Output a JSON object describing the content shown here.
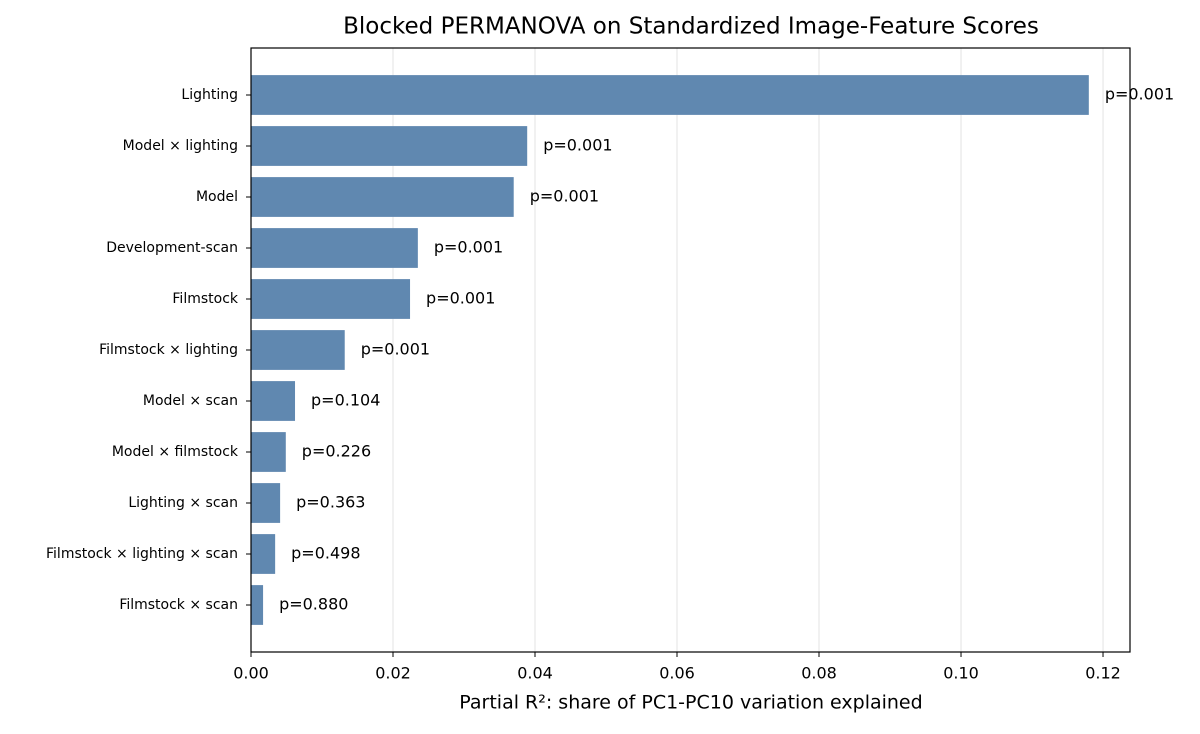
{
  "chart_data": {
    "type": "barh",
    "title": "Blocked PERMANOVA on Standardized Image-Feature Scores",
    "xlabel": "Partial R²: share of PC1-PC10 variation explained",
    "categories": [
      "Lighting",
      "Model × lighting",
      "Model",
      "Development-scan",
      "Filmstock",
      "Filmstock × lighting",
      "Model × scan",
      "Model × filmstock",
      "Lighting × scan",
      "Filmstock × lighting × scan",
      "Filmstock × scan"
    ],
    "values": [
      0.118,
      0.0389,
      0.037,
      0.0235,
      0.0224,
      0.0132,
      0.0062,
      0.0049,
      0.0041,
      0.0034,
      0.0017
    ],
    "annotations": [
      "p=0.001",
      "p=0.001",
      "p=0.001",
      "p=0.001",
      "p=0.001",
      "p=0.001",
      "p=0.104",
      "p=0.226",
      "p=0.363",
      "p=0.498",
      "p=0.880"
    ],
    "color": "#6088b0",
    "xlim": [
      0,
      0.1238
    ],
    "xticks": [
      {
        "value": 0,
        "label": "0.00"
      },
      {
        "value": 0.02,
        "label": "0.02"
      },
      {
        "value": 0.04,
        "label": "0.04"
      },
      {
        "value": 0.06,
        "label": "0.06"
      },
      {
        "value": 0.08,
        "label": "0.08"
      },
      {
        "value": 0.1,
        "label": "0.10"
      },
      {
        "value": 0.12,
        "label": "0.12"
      }
    ],
    "grid": true
  }
}
